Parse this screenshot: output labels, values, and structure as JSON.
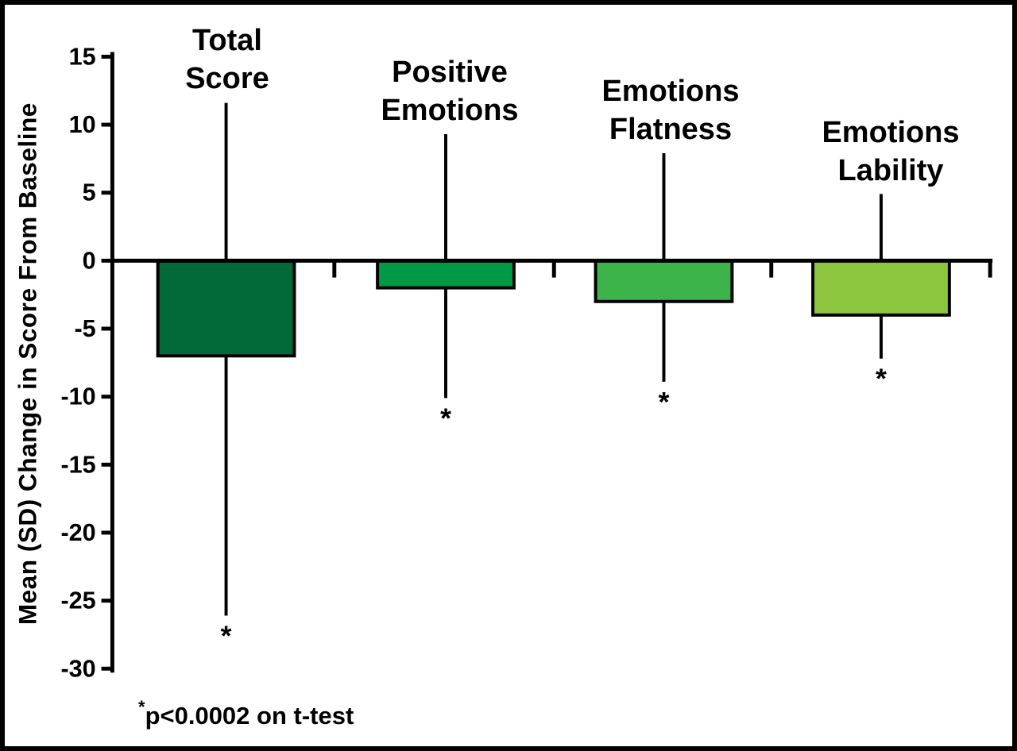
{
  "figure": {
    "y_axis_title": "Mean (SD) Change in Score From Baseline",
    "footnote": {
      "asterisk": "*",
      "text": "p<0.0002 on t-test"
    }
  },
  "chart_data": {
    "type": "bar",
    "title": "",
    "xlabel": "",
    "ylabel": "Mean (SD) Change in Score From Baseline",
    "ylim": [
      -30,
      15
    ],
    "yticks": [
      15,
      10,
      5,
      0,
      -5,
      -10,
      -15,
      -20,
      -25,
      -30
    ],
    "grid": false,
    "legend": null,
    "categories": [
      "Total Score",
      "Positive Emotions",
      "Emotions Flatness",
      "Emotions Lability"
    ],
    "category_label_lines": [
      [
        "Total",
        "Score"
      ],
      [
        "Positive",
        "Emotions"
      ],
      [
        "Emotions",
        "Flatness"
      ],
      [
        "Emotions",
        "Lability"
      ]
    ],
    "series": [
      {
        "name": "Mean change in score from baseline",
        "values": [
          -7,
          -2,
          -3,
          -4
        ],
        "error_bar_top": [
          11.6,
          9.3,
          7.9,
          4.9
        ],
        "error_bar_bottom": [
          -26.1,
          -10.1,
          -8.9,
          -7.2
        ],
        "bar_colors": [
          "#026939",
          "#009945",
          "#3CB44A",
          "#8CC63F"
        ]
      }
    ],
    "significance_markers": [
      "*",
      "*",
      "*",
      "*"
    ],
    "annotation": "*p<0.0002 on t-test",
    "axis_color": "#000000",
    "bar_outline_color": "#000000"
  }
}
